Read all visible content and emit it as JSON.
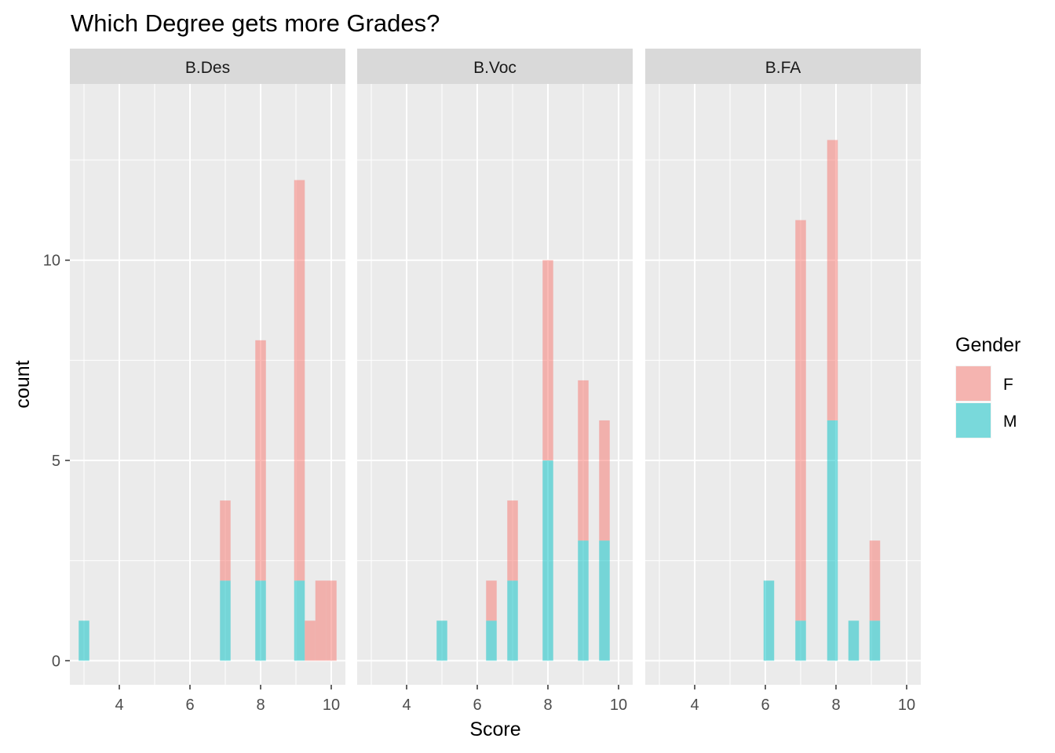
{
  "chart_data": {
    "type": "bar",
    "stacked": true,
    "title": "Which Degree gets more Grades?",
    "xlabel": "Score",
    "ylabel": "count",
    "xlim": [
      2.6,
      10.4
    ],
    "ylim": [
      -0.6,
      14.4
    ],
    "x_ticks": [
      4,
      6,
      8,
      10
    ],
    "y_ticks": [
      0,
      5,
      10
    ],
    "grid": true,
    "legend": {
      "title": "Gender",
      "position": "right",
      "entries": [
        {
          "name": "F",
          "color": "#F8766D"
        },
        {
          "name": "M",
          "color": "#00BFC4"
        }
      ]
    },
    "bar_opacity": 0.5,
    "bin_width": 0.3,
    "panels": [
      {
        "name": "B.Des",
        "x": [
          3.0,
          7.0,
          8.0,
          9.1,
          9.4,
          9.7,
          10.0
        ],
        "series": [
          {
            "name": "M",
            "values": [
              1,
              2,
              2,
              2,
              0,
              0,
              0
            ]
          },
          {
            "name": "F",
            "values": [
              0,
              2,
              6,
              10,
              1,
              2,
              2
            ]
          }
        ]
      },
      {
        "name": "B.Voc",
        "x": [
          5.0,
          6.4,
          7.0,
          8.0,
          9.0,
          9.6
        ],
        "series": [
          {
            "name": "M",
            "values": [
              1,
              1,
              2,
              5,
              3,
              3
            ]
          },
          {
            "name": "F",
            "values": [
              0,
              1,
              2,
              5,
              4,
              3
            ]
          }
        ]
      },
      {
        "name": "B.FA",
        "x": [
          6.1,
          7.0,
          7.9,
          8.5,
          9.1
        ],
        "series": [
          {
            "name": "M",
            "values": [
              2,
              1,
              6,
              1,
              1
            ]
          },
          {
            "name": "F",
            "values": [
              0,
              10,
              7,
              0,
              2
            ]
          }
        ]
      }
    ]
  }
}
